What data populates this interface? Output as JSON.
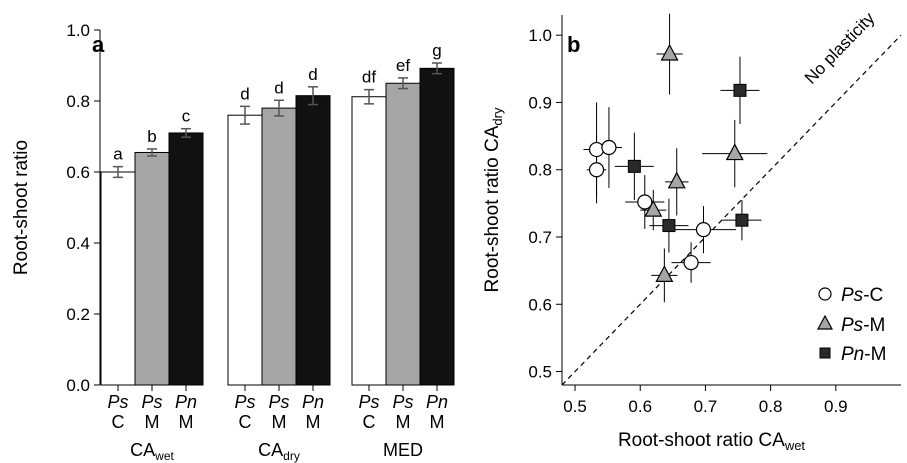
{
  "chart_data": [
    {
      "type": "bar",
      "panel_label": "a",
      "ylabel": "Root-shoot ratio",
      "ylim": [
        0.0,
        1.0
      ],
      "yticks": [
        "0.0",
        "0.2",
        "0.4",
        "0.6",
        "0.8",
        "1.0"
      ],
      "groups": [
        {
          "base": "CA",
          "sub": "wet"
        },
        {
          "base": "CA",
          "sub": "dry"
        },
        {
          "base": "MED",
          "sub": ""
        }
      ],
      "bar_labels": [
        {
          "species": "Ps",
          "origin": "C"
        },
        {
          "species": "Ps",
          "origin": "M"
        },
        {
          "species": "Pn",
          "origin": "M"
        }
      ],
      "colors": [
        "#ffffff",
        "#a6a6a6",
        "#111111"
      ],
      "values": [
        [
          0.6,
          0.655,
          0.71
        ],
        [
          0.76,
          0.78,
          0.815
        ],
        [
          0.812,
          0.85,
          0.892
        ]
      ],
      "errors": [
        [
          0.015,
          0.01,
          0.012
        ],
        [
          0.025,
          0.022,
          0.025
        ],
        [
          0.02,
          0.015,
          0.015
        ]
      ],
      "letters": [
        [
          "a",
          "b",
          "c"
        ],
        [
          "d",
          "d",
          "d"
        ],
        [
          "df",
          "ef",
          "g"
        ]
      ]
    },
    {
      "type": "scatter",
      "panel_label": "b",
      "xlabel": {
        "base": "Root-shoot ratio CA",
        "sub": "wet"
      },
      "ylabel": {
        "base": "Root-shoot ratio CA",
        "sub": "dry"
      },
      "xlim": [
        0.48,
        1.0
      ],
      "ylim": [
        0.48,
        1.03
      ],
      "xticks": [
        "0.5",
        "0.6",
        "0.7",
        "0.8",
        "0.9"
      ],
      "yticks": [
        "0.5",
        "0.6",
        "0.7",
        "0.8",
        "0.9",
        "1.0"
      ],
      "diagonal_label": "No plasticity",
      "legend_position": "bottom-right",
      "series": [
        {
          "name": {
            "italic": "Ps",
            "rest": "-C"
          },
          "marker": "circle",
          "color": "#ffffff",
          "points": [
            {
              "x": 0.533,
              "y": 0.83,
              "xerr": 0.02,
              "yerr": 0.07
            },
            {
              "x": 0.552,
              "y": 0.833,
              "xerr": 0.02,
              "yerr": 0.06
            },
            {
              "x": 0.533,
              "y": 0.8,
              "xerr": 0.015,
              "yerr": 0.05
            },
            {
              "x": 0.607,
              "y": 0.752,
              "xerr": 0.03,
              "yerr": 0.04
            },
            {
              "x": 0.697,
              "y": 0.711,
              "xerr": 0.05,
              "yerr": 0.035
            },
            {
              "x": 0.678,
              "y": 0.662,
              "xerr": 0.03,
              "yerr": 0.03
            }
          ]
        },
        {
          "name": {
            "italic": "Ps",
            "rest": "-M"
          },
          "marker": "triangle",
          "color": "#a6a6a6",
          "points": [
            {
              "x": 0.645,
              "y": 0.972,
              "xerr": 0.02,
              "yerr": 0.06
            },
            {
              "x": 0.656,
              "y": 0.782,
              "xerr": 0.018,
              "yerr": 0.05
            },
            {
              "x": 0.62,
              "y": 0.74,
              "xerr": 0.02,
              "yerr": 0.03
            },
            {
              "x": 0.637,
              "y": 0.643,
              "xerr": 0.02,
              "yerr": 0.04
            },
            {
              "x": 0.745,
              "y": 0.824,
              "xerr": 0.05,
              "yerr": 0.05
            }
          ]
        },
        {
          "name": {
            "italic": "Pn",
            "rest": "-M"
          },
          "marker": "square",
          "color": "#2a2a2a",
          "points": [
            {
              "x": 0.591,
              "y": 0.805,
              "xerr": 0.03,
              "yerr": 0.05
            },
            {
              "x": 0.644,
              "y": 0.717,
              "xerr": 0.03,
              "yerr": 0.04
            },
            {
              "x": 0.753,
              "y": 0.918,
              "xerr": 0.03,
              "yerr": 0.05
            },
            {
              "x": 0.756,
              "y": 0.725,
              "xerr": 0.03,
              "yerr": 0.03
            }
          ]
        }
      ]
    }
  ]
}
